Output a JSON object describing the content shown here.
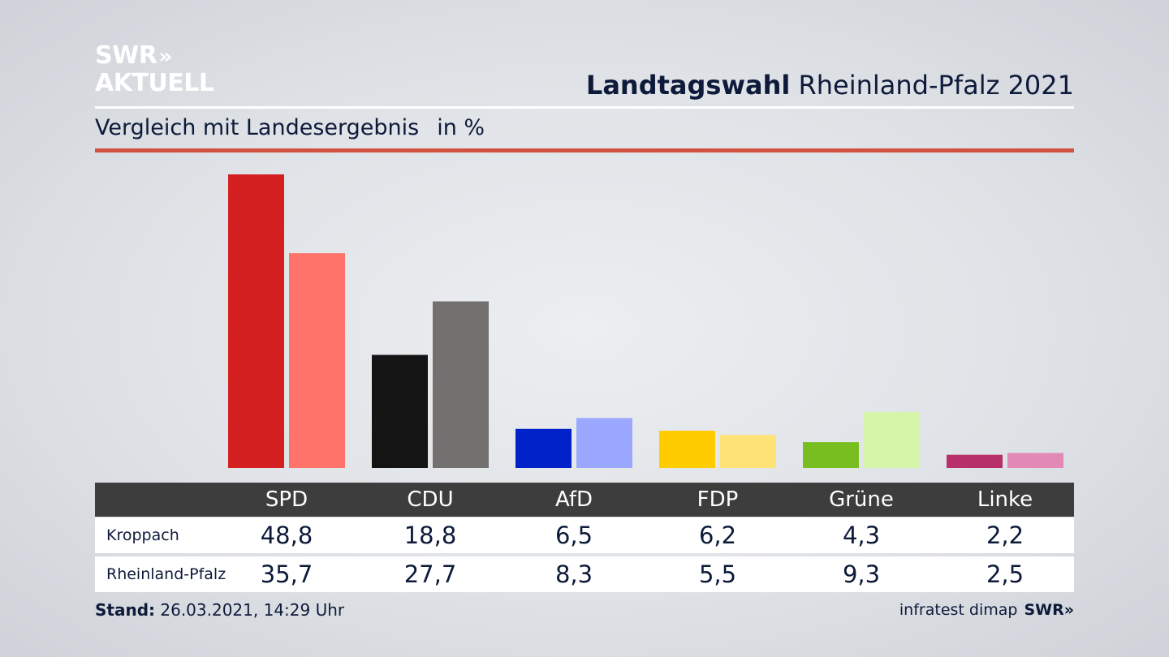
{
  "logo": {
    "line1": "SWR",
    "line1_chevrons": "»",
    "line2": "AKTUELL"
  },
  "header": {
    "title_bold": "Landtagswahl",
    "title_rest": " Rheinland-Pfalz 2021"
  },
  "subheader": {
    "label": "Vergleich mit Landesergebnis",
    "unit": "in %"
  },
  "chart_data": {
    "type": "bar",
    "categories": [
      "SPD",
      "CDU",
      "AfD",
      "FDP",
      "Grüne",
      "Linke"
    ],
    "series": [
      {
        "name": "Kroppach",
        "values": [
          48.8,
          18.8,
          6.5,
          6.2,
          4.3,
          2.2
        ]
      },
      {
        "name": "Rheinland-Pfalz",
        "values": [
          35.7,
          27.7,
          8.3,
          5.5,
          9.3,
          2.5
        ]
      }
    ],
    "value_labels": {
      "Kroppach": [
        "48,8",
        "18,8",
        "6,5",
        "6,2",
        "4,3",
        "2,2"
      ],
      "Rheinland-Pfalz": [
        "35,7",
        "27,7",
        "8,3",
        "5,5",
        "9,3",
        "2,5"
      ]
    },
    "colors": {
      "Kroppach": [
        "#d42020",
        "#141414",
        "#0022c8",
        "#ffcc00",
        "#78be20",
        "#b8306a"
      ],
      "Rheinland-Pfalz": [
        "#ff736b",
        "#727170",
        "#9aa8ff",
        "#ffe276",
        "#d6f5a8",
        "#e28ab6"
      ]
    },
    "ylim": [
      0,
      50
    ],
    "title": "",
    "xlabel": "",
    "ylabel": ""
  },
  "footer": {
    "stand_label": "Stand:",
    "stand_value": " 26.03.2021, 14:29 Uhr",
    "source": "infratest dimap",
    "brand": "SWR»"
  }
}
